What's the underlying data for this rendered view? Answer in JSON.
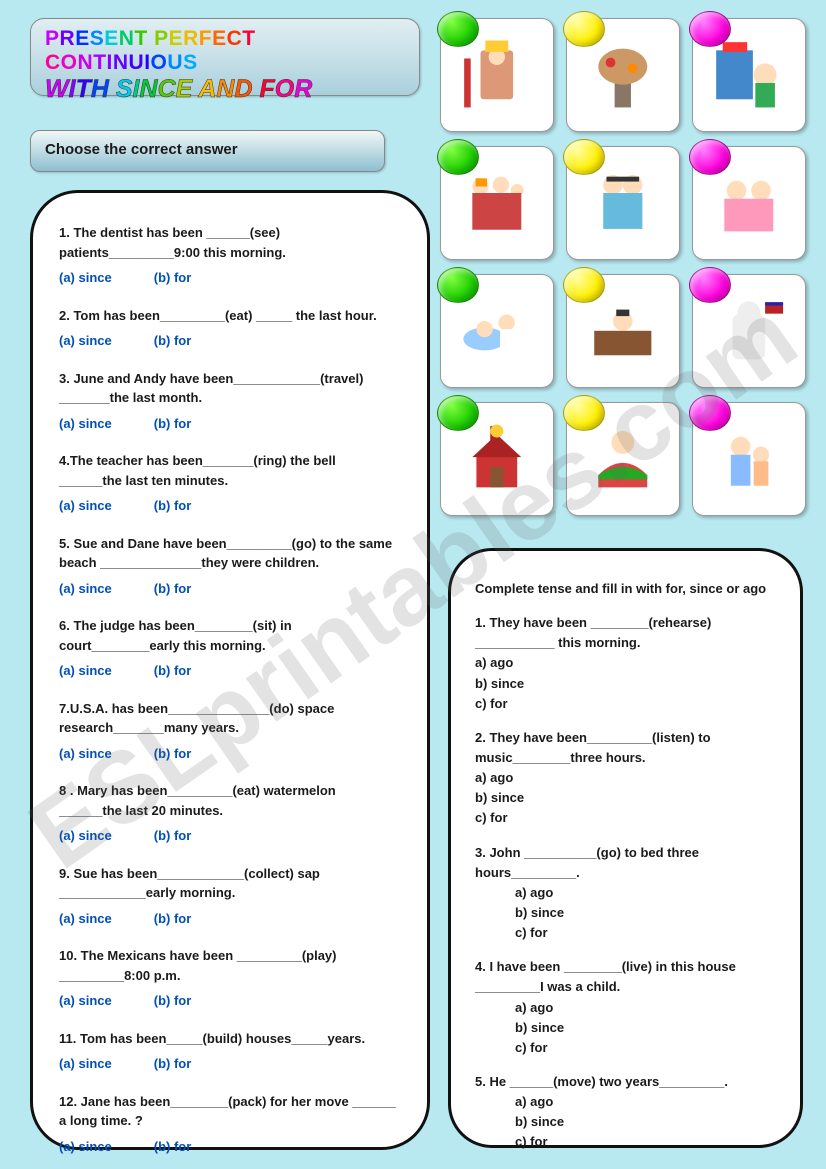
{
  "title_line1_segments": [
    {
      "t": "P",
      "c": "#c800ff"
    },
    {
      "t": "R",
      "c": "#6a00ff"
    },
    {
      "t": "E",
      "c": "#0030ff"
    },
    {
      "t": "S",
      "c": "#0088ff"
    },
    {
      "t": "E",
      "c": "#00ccdd"
    },
    {
      "t": "N",
      "c": "#00cc66"
    },
    {
      "t": "T",
      "c": "#33cc00"
    },
    {
      "t": " ",
      "c": "#55cc00"
    },
    {
      "t": "P",
      "c": "#88cc00"
    },
    {
      "t": "E",
      "c": "#cccc00"
    },
    {
      "t": "R",
      "c": "#eebb00"
    },
    {
      "t": "F",
      "c": "#ff9900"
    },
    {
      "t": "E",
      "c": "#ff6600"
    },
    {
      "t": "C",
      "c": "#ff3300"
    },
    {
      "t": "T",
      "c": "#ff0033"
    },
    {
      "t": " ",
      "c": "#ff0066"
    },
    {
      "t": "C",
      "c": "#ff0099"
    },
    {
      "t": "O",
      "c": "#ee00cc"
    },
    {
      "t": "N",
      "c": "#cc00ee"
    },
    {
      "t": "T",
      "c": "#aa00ff"
    },
    {
      "t": "I",
      "c": "#8800ff"
    },
    {
      "t": "N",
      "c": "#6600ff"
    },
    {
      "t": "U",
      "c": "#4400ff"
    },
    {
      "t": "I",
      "c": "#2200ff"
    },
    {
      "t": "O",
      "c": "#0044ff"
    },
    {
      "t": "U",
      "c": "#0088ff"
    },
    {
      "t": "S",
      "c": "#00aaff"
    }
  ],
  "title_line2_segments": [
    {
      "t": "W",
      "c": "#d000ff"
    },
    {
      "t": "I",
      "c": "#8800ff"
    },
    {
      "t": "T",
      "c": "#3300ff"
    },
    {
      "t": "H",
      "c": "#0044ff"
    },
    {
      "t": " ",
      "c": "#0088ff"
    },
    {
      "t": "S",
      "c": "#00ccee"
    },
    {
      "t": "I",
      "c": "#00cc88"
    },
    {
      "t": "N",
      "c": "#00cc33"
    },
    {
      "t": "C",
      "c": "#55cc00"
    },
    {
      "t": "E",
      "c": "#aacc00"
    },
    {
      "t": " ",
      "c": "#dddd00"
    },
    {
      "t": "A",
      "c": "#ffbb00"
    },
    {
      "t": "N",
      "c": "#ff8800"
    },
    {
      "t": "D",
      "c": "#ff5500"
    },
    {
      "t": " ",
      "c": "#ff3300"
    },
    {
      "t": "F",
      "c": "#ff0033"
    },
    {
      "t": "O",
      "c": "#ff0088"
    },
    {
      "t": "R",
      "c": "#ee00dd"
    }
  ],
  "instruction": "Choose the correct answer",
  "left_questions": [
    {
      "text": "1. The dentist has been ______(see) patients_________9:00 this morning.",
      "a": "(a) since",
      "b": "(b) for"
    },
    {
      "text": "2. Tom has been_________(eat) _____ the last hour.",
      "a": "(a) since",
      "b": "(b) for"
    },
    {
      "text": "3. June and Andy have been____________(travel) _______the last month.",
      "a": "(a) since",
      "b": "(b) for"
    },
    {
      "text": "4.The teacher has been_______(ring) the bell ______the last ten minutes.",
      "a": "(a) since",
      "b": "(b) for"
    },
    {
      "text": " 5. Sue and Dane have been_________(go) to the same beach ______________they were children.",
      "a": "(a) since",
      "b": "(b) for"
    },
    {
      "text": "6. The judge has been________(sit)   in court________early this morning.",
      "a": "(a) since",
      "b": "(b) for"
    },
    {
      "text": " 7.U.S.A. has been______________(do) space research_______many years.",
      "a": "(a) since",
      "b": "(b) for"
    },
    {
      "text": " 8 .  Mary has been_________(eat) watermelon ______the last 20 minutes.",
      "a": "(a) since",
      "b": "(b) for"
    },
    {
      "text": " 9.  Sue has been____________(collect) sap ____________early morning.",
      "a": "(a) since",
      "b": "(b) for"
    },
    {
      "text": "10. The Mexicans have been _________(play) _________8:00 p.m.",
      "a": "(a) since",
      "b": "(b) for"
    },
    {
      "text": "11. Tom has been_____(build) houses_____years.",
      "a": "(a) since",
      "b": "(b) for"
    },
    {
      "text": " 12. Jane has been________(pack) for her move ______ a long time. ?",
      "a": "(a) since",
      "b": "(b) for"
    }
  ],
  "images": [
    {
      "oval": "green"
    },
    {
      "oval": "yellow"
    },
    {
      "oval": "magenta"
    },
    {
      "oval": "green"
    },
    {
      "oval": "yellow"
    },
    {
      "oval": "magenta"
    },
    {
      "oval": "green"
    },
    {
      "oval": "yellow"
    },
    {
      "oval": "magenta"
    },
    {
      "oval": "green"
    },
    {
      "oval": "yellow"
    },
    {
      "oval": "magenta"
    }
  ],
  "right_intro": "Complete tense and fill  in with for, since or ago",
  "right_questions": [
    {
      "text": "1.  They have been ________(rehearse)  ___________ this morning.",
      "opts": [
        "a)  ago",
        "b)  since",
        "c)   for"
      ],
      "indent": false
    },
    {
      "text": "2. They have been_________(listen) to music________three  hours.",
      "opts": [
        "a)  ago",
        "b)  since",
        "c)  for"
      ],
      "indent": false
    },
    {
      "text": "3. John __________(go)   to bed three hours_________.",
      "opts": [
        "a)   ago",
        "b)   since",
        "c)   for"
      ],
      "indent": true
    },
    {
      "text": "4.  I have been ________(live) in this house _________I was a child.",
      "opts": [
        "a)   ago",
        "b)   since",
        "c)   for"
      ],
      "indent": true
    },
    {
      "text": "5. He ______(move)  two years_________.",
      "opts": [
        "a)   ago",
        "b)   since",
        "c)   for"
      ],
      "indent": true
    }
  ],
  "watermark": "ESLprintables.com",
  "colors": {
    "page_bg": "#b8e8f0",
    "panel_bg": "#ffffff",
    "panel_border": "#111111",
    "choice_color": "#0050b8"
  }
}
